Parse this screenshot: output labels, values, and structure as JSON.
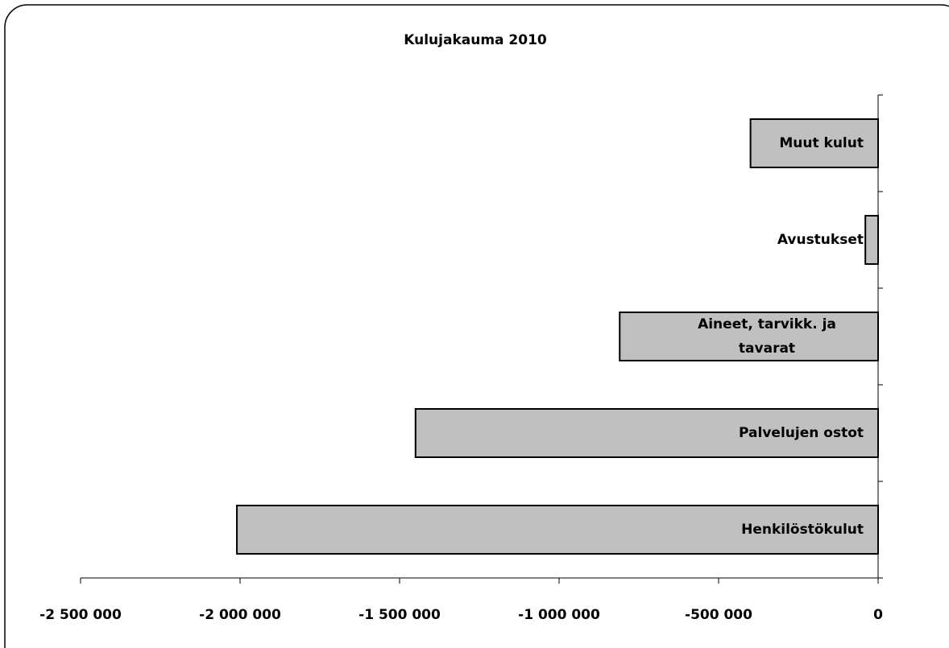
{
  "chart_data": {
    "type": "barh",
    "title": "Kulujakauma 2010",
    "categories": [
      "Henkilöstökulut",
      "Palvelujen ostot",
      "Aineet, tarvikk. ja tavarat",
      "Avustukset",
      "Muut kulut"
    ],
    "values": [
      -2010000,
      -1450000,
      -810000,
      -40000,
      -400000
    ],
    "color": "#c0c0c0",
    "xlim": [
      -2500000,
      0
    ],
    "xticks": [
      {
        "value": -2500000,
        "label": "-2 500 000"
      },
      {
        "value": -2000000,
        "label": "-2 000 000"
      },
      {
        "value": -1500000,
        "label": "-1 500 000"
      },
      {
        "value": -1000000,
        "label": "-1 000 000"
      },
      {
        "value": -500000,
        "label": "-500 000"
      },
      0
    ]
  }
}
